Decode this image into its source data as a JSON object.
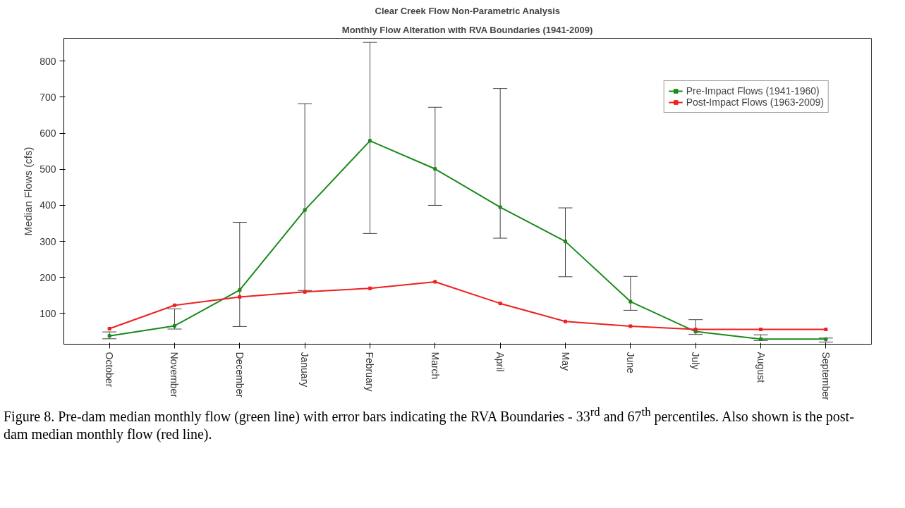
{
  "chart_data": {
    "type": "line",
    "title": "Clear Creek Flow Non-Parametric Analysis",
    "subtitle": "Monthly Flow Alteration with RVA Boundaries (1941-2009)",
    "ylabel": "Median Flows (cfs)",
    "categories": [
      "October",
      "November",
      "December",
      "January",
      "February",
      "March",
      "April",
      "May",
      "June",
      "July",
      "August",
      "September"
    ],
    "series": [
      {
        "name": "Pre-Impact Flows (1941-1960)",
        "color": "#1a8a1a",
        "values": [
          38,
          66,
          165,
          387,
          579,
          501,
          395,
          300,
          133,
          50,
          29,
          29
        ],
        "errors": [
          [
            30,
            49
          ],
          [
            57,
            113
          ],
          [
            64,
            353
          ],
          [
            164,
            682
          ],
          [
            322,
            852
          ],
          [
            400,
            672
          ],
          [
            309,
            724
          ],
          [
            202,
            393
          ],
          [
            109,
            203
          ],
          [
            42,
            83
          ],
          [
            25,
            41
          ],
          [
            21,
            32
          ]
        ]
      },
      {
        "name": "Post-Impact Flows (1963-2009)",
        "color": "#ee2020",
        "values": [
          58,
          123,
          146,
          160,
          170,
          188,
          128,
          78,
          65,
          56,
          56,
          56
        ]
      }
    ],
    "ylim": [
      15,
      863
    ],
    "yticks": [
      100,
      200,
      300,
      400,
      500,
      600,
      700,
      800
    ],
    "grid": false,
    "legend": "top right",
    "marker": "square",
    "line_style": "solid",
    "annotations": [
      "Figure 8. Pre-dam median monthly flow (green line) with error bars indicating the RVA Boundaries - 33$^{rd}$ and 67$^{th}$ percentiles. Also shown is the post-dam median monthly flow (red line)."
    ]
  }
}
